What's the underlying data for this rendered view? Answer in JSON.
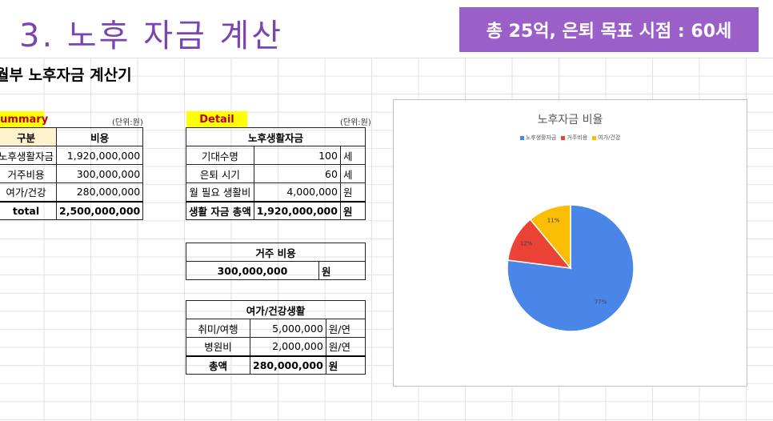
{
  "slide": {
    "title": "3. 노후 자금 계산",
    "header_box": "총 25억, 은퇴 목표 시점 : 60세"
  },
  "sheet": {
    "title": "월부 노후자금 계산기"
  },
  "summary": {
    "label": "Summary",
    "unit": "(단위:원)",
    "col1": "구분",
    "col2": "비용",
    "rows": [
      {
        "name": "노후생활자금",
        "value": "1,920,000,000"
      },
      {
        "name": "거주비용",
        "value": "300,000,000"
      },
      {
        "name": "여가/건강",
        "value": "280,000,000"
      }
    ],
    "total_label": "total",
    "total_value": "2,500,000,000"
  },
  "detail": {
    "label": "Detail",
    "unit": "(단위:원)",
    "living": {
      "header": "노후생활자금",
      "rows": [
        {
          "name": "기대수명",
          "value": "100",
          "unit": "세"
        },
        {
          "name": "은퇴 시기",
          "value": "60",
          "unit": "세"
        },
        {
          "name": "월 필요 생활비",
          "value": "4,000,000",
          "unit": "원"
        },
        {
          "name": "생활 자금 총액",
          "value": "1,920,000,000",
          "unit": "원"
        }
      ]
    },
    "housing": {
      "header": "거주 비용",
      "value": "300,000,000",
      "unit": "원"
    },
    "leisure": {
      "header": "여가/건강생활",
      "rows": [
        {
          "name": "취미/여행",
          "value": "5,000,000",
          "unit": "원/연"
        },
        {
          "name": "병원비",
          "value": "2,000,000",
          "unit": "원/연"
        },
        {
          "name": "총액",
          "value": "280,000,000",
          "unit": "원"
        }
      ]
    }
  },
  "chart_data": {
    "type": "pie",
    "title": "노후자금 비율",
    "categories": [
      "노후생활자금",
      "거주비용",
      "여가/건강"
    ],
    "values": [
      77,
      12,
      11
    ],
    "labels": [
      "77%",
      "12%",
      "11%"
    ],
    "colors": [
      "#4a86e8",
      "#ea4335",
      "#fbbc04"
    ],
    "legend": "top"
  }
}
